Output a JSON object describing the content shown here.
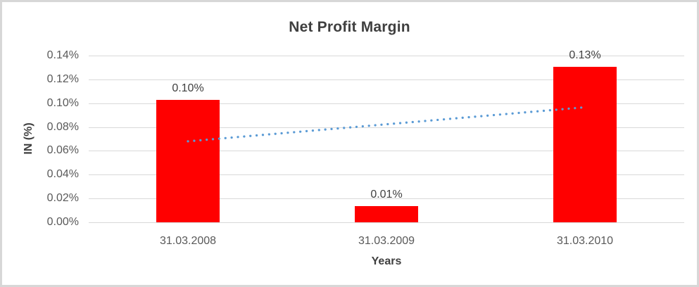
{
  "chart_data": {
    "type": "bar",
    "title": "Net Profit Margin",
    "xlabel": "Years",
    "ylabel": "IN (%)",
    "categories": [
      "31.03.2008",
      "31.03.2009",
      "31.03.2010"
    ],
    "values": [
      0.1025,
      0.0135,
      0.1305
    ],
    "data_labels": [
      "0.10%",
      "0.01%",
      "0.13%"
    ],
    "y_ticks": [
      "0.14%",
      "0.12%",
      "0.10%",
      "0.08%",
      "0.06%",
      "0.04%",
      "0.02%",
      "0.00%"
    ],
    "ylim": [
      0,
      0.14
    ],
    "y_tick_step": 0.02,
    "grid": true,
    "legend": "none",
    "bar_color": "#FF0000",
    "trendline": {
      "type": "linear",
      "style": "dotted",
      "color": "#5B9BD5",
      "start_value": 0.068,
      "end_value": 0.0966
    },
    "colors": {
      "grid": "#D9D9D9",
      "title_text": "#3F3F3F",
      "axis_text": "#595959",
      "label_text": "#404040",
      "background": "#FFFFFF",
      "border": "#D7D7D7"
    }
  }
}
